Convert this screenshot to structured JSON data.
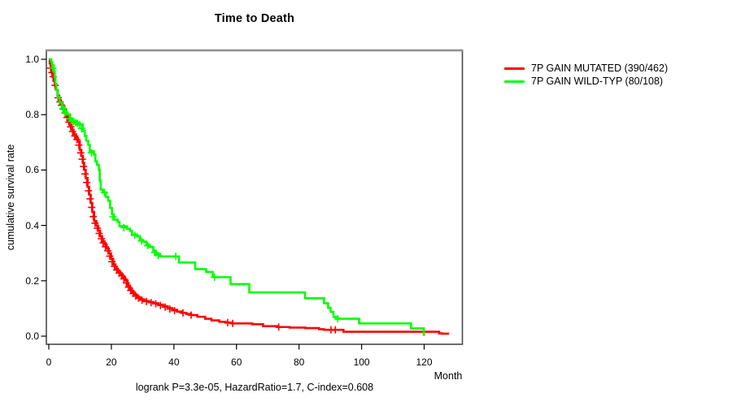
{
  "title": "Time to Death",
  "footer": "logrank P=3.3e-05, HazardRatio=1.7, C-index=0.608",
  "x_axis": {
    "label": "Month"
  },
  "y_axis": {
    "label": "cumulative survival rate"
  },
  "legend": {
    "items": [
      {
        "label": "7P GAIN MUTATED (390/462)",
        "color": "#ff0000"
      },
      {
        "label": "7P GAIN WILD-TYP (80/108)",
        "color": "#00ff00"
      }
    ]
  },
  "chart_data": {
    "type": "line",
    "subtype": "kaplan-meier-step",
    "title": "Time to Death",
    "xlabel": "Month",
    "ylabel": "cumulative survival rate",
    "annotation": "logrank P=3.3e-05, HazardRatio=1.7, C-index=0.608",
    "xlim": [
      0,
      131
    ],
    "ylim": [
      0,
      1
    ],
    "x_ticks": [
      0,
      20,
      40,
      60,
      80,
      100,
      120
    ],
    "y_ticks": [
      0.0,
      0.2,
      0.4,
      0.6,
      0.8,
      1.0
    ],
    "grid": false,
    "legend_position": "outside-right",
    "frame_color": "#4a4a4a",
    "series": [
      {
        "name": "7P GAIN MUTATED (390/462)",
        "color": "#ff0000",
        "steps": [
          [
            0,
            1.0
          ],
          [
            0.3,
            0.985
          ],
          [
            0.6,
            0.968
          ],
          [
            0.9,
            0.952
          ],
          [
            1.2,
            0.937
          ],
          [
            1.5,
            0.922
          ],
          [
            1.9,
            0.906
          ],
          [
            2.3,
            0.889
          ],
          [
            2.8,
            0.869
          ],
          [
            3.3,
            0.852
          ],
          [
            3.9,
            0.839
          ],
          [
            4.4,
            0.828
          ],
          [
            5.0,
            0.811
          ],
          [
            5.5,
            0.796
          ],
          [
            6.1,
            0.78
          ],
          [
            6.7,
            0.763
          ],
          [
            7.3,
            0.746
          ],
          [
            7.9,
            0.729
          ],
          [
            8.7,
            0.716
          ],
          [
            9.3,
            0.703
          ],
          [
            9.9,
            0.673
          ],
          [
            10.4,
            0.651
          ],
          [
            10.9,
            0.626
          ],
          [
            11.3,
            0.601
          ],
          [
            11.8,
            0.571
          ],
          [
            12.4,
            0.539
          ],
          [
            12.9,
            0.511
          ],
          [
            13.4,
            0.481
          ],
          [
            13.9,
            0.449
          ],
          [
            14.5,
            0.416
          ],
          [
            15.2,
            0.399
          ],
          [
            15.8,
            0.381
          ],
          [
            16.4,
            0.361
          ],
          [
            17.1,
            0.343
          ],
          [
            17.8,
            0.331
          ],
          [
            18.5,
            0.316
          ],
          [
            19.2,
            0.299
          ],
          [
            19.9,
            0.279
          ],
          [
            20.6,
            0.259
          ],
          [
            21.3,
            0.244
          ],
          [
            22.1,
            0.233
          ],
          [
            22.9,
            0.223
          ],
          [
            23.7,
            0.213
          ],
          [
            24.4,
            0.201
          ],
          [
            25.2,
            0.183
          ],
          [
            25.9,
            0.171
          ],
          [
            26.6,
            0.159
          ],
          [
            27.4,
            0.149
          ],
          [
            28.2,
            0.141
          ],
          [
            29.2,
            0.133
          ],
          [
            30.5,
            0.127
          ],
          [
            32,
            0.123
          ],
          [
            33.5,
            0.119
          ],
          [
            35,
            0.114
          ],
          [
            36.5,
            0.108
          ],
          [
            38,
            0.101
          ],
          [
            39.5,
            0.095
          ],
          [
            41,
            0.089
          ],
          [
            42.5,
            0.084
          ],
          [
            44,
            0.08
          ],
          [
            45.5,
            0.076
          ],
          [
            47.5,
            0.07
          ],
          [
            50,
            0.063
          ],
          [
            52,
            0.057
          ],
          [
            54.5,
            0.052
          ],
          [
            56.5,
            0.049
          ],
          [
            58.5,
            0.046
          ],
          [
            65,
            0.043
          ],
          [
            68.5,
            0.036
          ],
          [
            73,
            0.033
          ],
          [
            77,
            0.031
          ],
          [
            82,
            0.029
          ],
          [
            86.4,
            0.025
          ],
          [
            88,
            0.023
          ],
          [
            94.2,
            0.016
          ],
          [
            124.8,
            0.01
          ],
          [
            125.8,
            0.009
          ],
          [
            128,
            0.009
          ]
        ],
        "censors": [
          [
            0.6,
            0.968
          ],
          [
            1.0,
            0.952
          ],
          [
            1.4,
            0.937
          ],
          [
            2.0,
            0.906
          ],
          [
            3.0,
            0.861
          ],
          [
            3.6,
            0.846
          ],
          [
            4.1,
            0.834
          ],
          [
            4.7,
            0.82
          ],
          [
            5.2,
            0.806
          ],
          [
            5.8,
            0.79
          ],
          [
            6.4,
            0.773
          ],
          [
            7.0,
            0.756
          ],
          [
            7.6,
            0.739
          ],
          [
            8.3,
            0.723
          ],
          [
            9.0,
            0.71
          ],
          [
            9.6,
            0.69
          ],
          [
            10.2,
            0.662
          ],
          [
            10.7,
            0.639
          ],
          [
            11.1,
            0.613
          ],
          [
            11.6,
            0.586
          ],
          [
            12.1,
            0.555
          ],
          [
            12.7,
            0.525
          ],
          [
            13.2,
            0.496
          ],
          [
            13.7,
            0.465
          ],
          [
            14.2,
            0.432
          ],
          [
            14.8,
            0.408
          ],
          [
            15.5,
            0.39
          ],
          [
            16.1,
            0.371
          ],
          [
            16.8,
            0.352
          ],
          [
            17.4,
            0.337
          ],
          [
            18.1,
            0.323
          ],
          [
            18.9,
            0.308
          ],
          [
            19.5,
            0.289
          ],
          [
            20.2,
            0.269
          ],
          [
            21.0,
            0.252
          ],
          [
            21.7,
            0.239
          ],
          [
            22.5,
            0.228
          ],
          [
            23.3,
            0.218
          ],
          [
            24.0,
            0.207
          ],
          [
            24.8,
            0.192
          ],
          [
            25.5,
            0.177
          ],
          [
            26.2,
            0.165
          ],
          [
            27.0,
            0.154
          ],
          [
            27.8,
            0.145
          ],
          [
            28.7,
            0.137
          ],
          [
            29.8,
            0.13
          ],
          [
            31.2,
            0.125
          ],
          [
            32.7,
            0.121
          ],
          [
            34.2,
            0.117
          ],
          [
            35.7,
            0.111
          ],
          [
            37.2,
            0.105
          ],
          [
            38.7,
            0.098
          ],
          [
            40.2,
            0.092
          ],
          [
            42.9,
            0.084
          ],
          [
            45.5,
            0.076
          ],
          [
            57.2,
            0.049
          ],
          [
            58.8,
            0.046
          ],
          [
            73.5,
            0.033
          ],
          [
            90.2,
            0.023
          ],
          [
            91.6,
            0.023
          ]
        ]
      },
      {
        "name": "7P GAIN WILD-TYP (80/108)",
        "color": "#00ff00",
        "steps": [
          [
            0,
            1.0
          ],
          [
            0.8,
            0.99
          ],
          [
            1.1,
            0.978
          ],
          [
            1.6,
            0.956
          ],
          [
            1.9,
            0.936
          ],
          [
            2.1,
            0.912
          ],
          [
            2.4,
            0.889
          ],
          [
            2.9,
            0.863
          ],
          [
            3.4,
            0.844
          ],
          [
            4.2,
            0.829
          ],
          [
            4.9,
            0.814
          ],
          [
            5.7,
            0.801
          ],
          [
            6.8,
            0.785
          ],
          [
            7.8,
            0.775
          ],
          [
            8.8,
            0.771
          ],
          [
            9.6,
            0.765
          ],
          [
            10.9,
            0.741
          ],
          [
            11.5,
            0.723
          ],
          [
            12.0,
            0.706
          ],
          [
            12.6,
            0.691
          ],
          [
            13.1,
            0.668
          ],
          [
            14.4,
            0.656
          ],
          [
            14.9,
            0.631
          ],
          [
            15.4,
            0.619
          ],
          [
            16.0,
            0.601
          ],
          [
            16.3,
            0.561
          ],
          [
            16.6,
            0.529
          ],
          [
            17.3,
            0.519
          ],
          [
            18.2,
            0.503
          ],
          [
            19.0,
            0.489
          ],
          [
            19.6,
            0.463
          ],
          [
            20.2,
            0.441
          ],
          [
            20.8,
            0.421
          ],
          [
            22.0,
            0.413
          ],
          [
            22.6,
            0.397
          ],
          [
            25.0,
            0.388
          ],
          [
            26.0,
            0.38
          ],
          [
            26.6,
            0.367
          ],
          [
            28.2,
            0.361
          ],
          [
            29.1,
            0.347
          ],
          [
            30.2,
            0.341
          ],
          [
            31.2,
            0.331
          ],
          [
            32.1,
            0.322
          ],
          [
            33.4,
            0.308
          ],
          [
            34.3,
            0.297
          ],
          [
            35.6,
            0.288
          ],
          [
            41.6,
            0.266
          ],
          [
            46.8,
            0.242
          ],
          [
            50.3,
            0.232
          ],
          [
            52.4,
            0.213
          ],
          [
            58.1,
            0.188
          ],
          [
            64.1,
            0.158
          ],
          [
            81.9,
            0.137
          ],
          [
            88.0,
            0.119
          ],
          [
            89.3,
            0.102
          ],
          [
            90.1,
            0.088
          ],
          [
            91.0,
            0.07
          ],
          [
            91.8,
            0.063
          ],
          [
            99.2,
            0.046
          ],
          [
            115.8,
            0.028
          ],
          [
            119.9,
            0.005
          ],
          [
            120.3,
            0.005
          ]
        ],
        "censors": [
          [
            1.3,
            0.968
          ],
          [
            4.5,
            0.822
          ],
          [
            5.2,
            0.807
          ],
          [
            6.9,
            0.785
          ],
          [
            7.4,
            0.778
          ],
          [
            8.0,
            0.775
          ],
          [
            8.6,
            0.771
          ],
          [
            9.2,
            0.769
          ],
          [
            9.9,
            0.763
          ],
          [
            10.5,
            0.75
          ],
          [
            13.6,
            0.662
          ],
          [
            17.8,
            0.519
          ],
          [
            20.5,
            0.431
          ],
          [
            24.0,
            0.392
          ],
          [
            27.5,
            0.364
          ],
          [
            29.6,
            0.344
          ],
          [
            31.6,
            0.327
          ],
          [
            33.8,
            0.302
          ],
          [
            35.0,
            0.291
          ],
          [
            40.6,
            0.288
          ],
          [
            53.0,
            0.213
          ],
          [
            92.4,
            0.063
          ]
        ]
      }
    ]
  }
}
